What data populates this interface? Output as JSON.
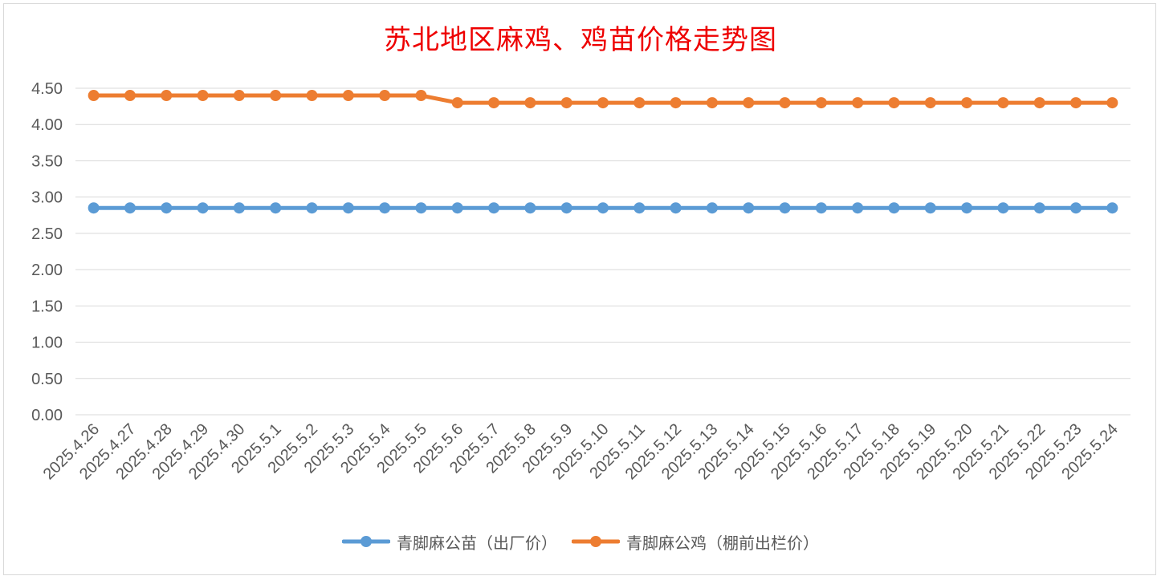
{
  "chart_data": {
    "type": "line",
    "title": "苏北地区麻鸡、鸡苗价格走势图",
    "categories": [
      "2025.4.26",
      "2025.4.27",
      "2025.4.28",
      "2025.4.29",
      "2025.4.30",
      "2025.5.1",
      "2025.5.2",
      "2025.5.3",
      "2025.5.4",
      "2025.5.5",
      "2025.5.6",
      "2025.5.7",
      "2025.5.8",
      "2025.5.9",
      "2025.5.10",
      "2025.5.11",
      "2025.5.12",
      "2025.5.13",
      "2025.5.14",
      "2025.5.15",
      "2025.5.16",
      "2025.5.17",
      "2025.5.18",
      "2025.5.19",
      "2025.5.20",
      "2025.5.21",
      "2025.5.22",
      "2025.5.23",
      "2025.5.24"
    ],
    "series": [
      {
        "name": "青脚麻公苗（出厂价）",
        "color": "#5b9bd5",
        "values": [
          2.85,
          2.85,
          2.85,
          2.85,
          2.85,
          2.85,
          2.85,
          2.85,
          2.85,
          2.85,
          2.85,
          2.85,
          2.85,
          2.85,
          2.85,
          2.85,
          2.85,
          2.85,
          2.85,
          2.85,
          2.85,
          2.85,
          2.85,
          2.85,
          2.85,
          2.85,
          2.85,
          2.85,
          2.85
        ]
      },
      {
        "name": "青脚麻公鸡（棚前出栏价）",
        "color": "#ed7d31",
        "values": [
          4.4,
          4.4,
          4.4,
          4.4,
          4.4,
          4.4,
          4.4,
          4.4,
          4.4,
          4.4,
          4.3,
          4.3,
          4.3,
          4.3,
          4.3,
          4.3,
          4.3,
          4.3,
          4.3,
          4.3,
          4.3,
          4.3,
          4.3,
          4.3,
          4.3,
          4.3,
          4.3,
          4.3,
          4.3
        ]
      }
    ],
    "ylim": [
      0,
      4.5
    ],
    "yticks": [
      "0.00",
      "0.50",
      "1.00",
      "1.50",
      "2.00",
      "2.50",
      "3.00",
      "3.50",
      "4.00",
      "4.50"
    ],
    "grid": true,
    "legend_position": "bottom"
  }
}
